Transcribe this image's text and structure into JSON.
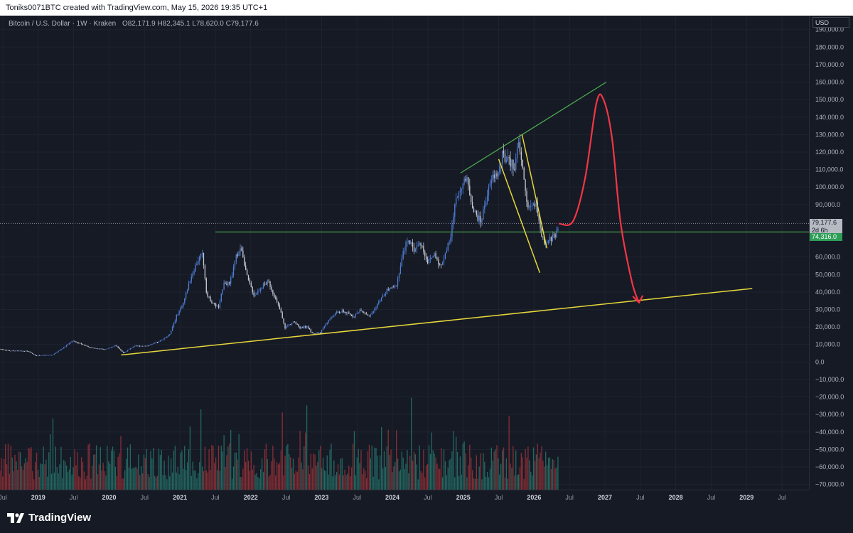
{
  "header": {
    "text": "Toniks0071BTC created with TradingView.com, May 15, 2026 19:35 UTC+1"
  },
  "legend": {
    "symbol": "Bitcoin / U.S. Dollar · 1W · Kraken",
    "ohlc": "O82,171.9  H82,345.1  L78,620.0  C79,177.6"
  },
  "price_axis": {
    "currency": "USD",
    "current_price_label": "79,177.6",
    "countdown_label": "2d 6h",
    "support_label": "74,316.0"
  },
  "branding": {
    "name": "TradingView"
  },
  "colors": {
    "background": "#161a25",
    "up_candle": "#4f7fd8",
    "down_candle": "#c8cbd2",
    "volume_up": "#26756c",
    "volume_down": "#9b3338",
    "green_line": "#4caf50",
    "yellow_line": "#e6d73a",
    "red_projection": "#f23645",
    "support_tag": "#2e9e57",
    "price_tag": "#b6bac2"
  },
  "chart_data": {
    "type": "candlestick",
    "title": "Bitcoin / U.S. Dollar · 1W · Kraken",
    "y_axis_ticks": [
      190000,
      180000,
      170000,
      160000,
      150000,
      140000,
      130000,
      120000,
      110000,
      100000,
      90000,
      80000,
      60000,
      50000,
      40000,
      30000,
      20000,
      10000,
      0,
      -10000,
      -20000,
      -30000,
      -40000,
      -50000,
      -60000,
      -70000
    ],
    "y_tick_labels": [
      "190,000.0",
      "180,000.0",
      "170,000.0",
      "160,000.0",
      "150,000.0",
      "140,000.0",
      "130,000.0",
      "120,000.0",
      "110,000.0",
      "100,000.0",
      "90,000.0",
      "80,000.0",
      "60,000.0",
      "50,000.0",
      "40,000.0",
      "30,000.0",
      "20,000.0",
      "10,000.0",
      "0.0",
      "−10,000.0",
      "−20,000.0",
      "−30,000.0",
      "−40,000.0",
      "−50,000.0",
      "−60,000.0",
      "−70,000.0"
    ],
    "ylim": [
      -73000,
      198000
    ],
    "x_axis_labels": [
      {
        "label": "Jul",
        "t": 2018.5
      },
      {
        "label": "2019",
        "t": 2019.0
      },
      {
        "label": "Jul",
        "t": 2019.5
      },
      {
        "label": "2020",
        "t": 2020.0
      },
      {
        "label": "Jul",
        "t": 2020.5
      },
      {
        "label": "2021",
        "t": 2021.0
      },
      {
        "label": "Jul",
        "t": 2021.5
      },
      {
        "label": "2022",
        "t": 2022.0
      },
      {
        "label": "Jul",
        "t": 2022.5
      },
      {
        "label": "2023",
        "t": 2023.0
      },
      {
        "label": "Jul",
        "t": 2023.5
      },
      {
        "label": "2024",
        "t": 2024.0
      },
      {
        "label": "Jul",
        "t": 2024.5
      },
      {
        "label": "2025",
        "t": 2025.0
      },
      {
        "label": "Jul",
        "t": 2025.5
      },
      {
        "label": "2026",
        "t": 2026.0
      },
      {
        "label": "Jul",
        "t": 2026.5
      },
      {
        "label": "2027",
        "t": 2027.0
      },
      {
        "label": "Jul",
        "t": 2027.5
      },
      {
        "label": "2028",
        "t": 2028.0
      },
      {
        "label": "Jul",
        "t": 2028.5
      },
      {
        "label": "2029",
        "t": 2029.0
      },
      {
        "label": "Jul",
        "t": 2029.5
      }
    ],
    "xlim": [
      2018.46,
      2029.88
    ],
    "price_path": [
      [
        2018.46,
        7400
      ],
      [
        2018.6,
        6400
      ],
      [
        2018.85,
        6200
      ],
      [
        2018.96,
        3700
      ],
      [
        2019.2,
        4000
      ],
      [
        2019.35,
        8000
      ],
      [
        2019.48,
        12000
      ],
      [
        2019.6,
        10500
      ],
      [
        2019.75,
        8000
      ],
      [
        2019.95,
        7200
      ],
      [
        2020.1,
        9500
      ],
      [
        2020.2,
        5000
      ],
      [
        2020.35,
        9000
      ],
      [
        2020.55,
        9300
      ],
      [
        2020.7,
        11500
      ],
      [
        2020.85,
        15500
      ],
      [
        2020.95,
        26000
      ],
      [
        2021.05,
        34000
      ],
      [
        2021.15,
        48000
      ],
      [
        2021.25,
        58000
      ],
      [
        2021.32,
        62000
      ],
      [
        2021.38,
        38000
      ],
      [
        2021.48,
        33000
      ],
      [
        2021.55,
        31000
      ],
      [
        2021.62,
        46000
      ],
      [
        2021.7,
        44000
      ],
      [
        2021.8,
        61000
      ],
      [
        2021.87,
        65000
      ],
      [
        2021.95,
        48000
      ],
      [
        2022.05,
        38000
      ],
      [
        2022.15,
        43000
      ],
      [
        2022.25,
        46000
      ],
      [
        2022.33,
        38000
      ],
      [
        2022.42,
        29000
      ],
      [
        2022.48,
        19500
      ],
      [
        2022.6,
        23000
      ],
      [
        2022.7,
        19500
      ],
      [
        2022.8,
        20500
      ],
      [
        2022.86,
        16500
      ],
      [
        2022.98,
        16600
      ],
      [
        2023.08,
        23000
      ],
      [
        2023.2,
        28000
      ],
      [
        2023.3,
        29000
      ],
      [
        2023.45,
        26000
      ],
      [
        2023.55,
        30000
      ],
      [
        2023.68,
        26000
      ],
      [
        2023.82,
        35000
      ],
      [
        2023.95,
        42000
      ],
      [
        2024.05,
        43000
      ],
      [
        2024.15,
        62000
      ],
      [
        2024.22,
        71000
      ],
      [
        2024.3,
        64000
      ],
      [
        2024.4,
        68000
      ],
      [
        2024.5,
        57000
      ],
      [
        2024.6,
        62000
      ],
      [
        2024.68,
        54000
      ],
      [
        2024.75,
        63000
      ],
      [
        2024.82,
        70000
      ],
      [
        2024.88,
        90000
      ],
      [
        2024.96,
        100000
      ],
      [
        2025.05,
        104000
      ],
      [
        2025.15,
        86000
      ],
      [
        2025.25,
        80000
      ],
      [
        2025.33,
        95000
      ],
      [
        2025.42,
        106000
      ],
      [
        2025.5,
        108000
      ],
      [
        2025.55,
        118000
      ],
      [
        2025.62,
        115000
      ],
      [
        2025.72,
        112000
      ],
      [
        2025.78,
        124000
      ],
      [
        2025.84,
        110000
      ],
      [
        2025.9,
        90000
      ],
      [
        2025.97,
        88000
      ],
      [
        2026.03,
        92000
      ],
      [
        2026.08,
        76000
      ],
      [
        2026.15,
        66000
      ],
      [
        2026.22,
        70000
      ],
      [
        2026.3,
        73000
      ],
      [
        2026.35,
        79177.6
      ]
    ],
    "annotations": {
      "horizontal_support": {
        "price": 74316.0,
        "x_start": 2021.5,
        "x_end": 2029.88
      },
      "current_price_line": {
        "price": 79177.6
      },
      "green_rising_line": [
        [
          2024.96,
          108000
        ],
        [
          2027.02,
          160000
        ]
      ],
      "yellow_long_trendline": [
        [
          2020.17,
          4000
        ],
        [
          2029.08,
          42000
        ]
      ],
      "yellow_channel_upper": [
        [
          2025.83,
          130000
        ],
        [
          2026.18,
          65000
        ]
      ],
      "yellow_channel_lower": [
        [
          2025.5,
          116000
        ],
        [
          2026.08,
          51000
        ]
      ],
      "red_projection_path": [
        [
          2026.36,
          79000
        ],
        [
          2026.55,
          80500
        ],
        [
          2026.72,
          105000
        ],
        [
          2026.88,
          148000
        ],
        [
          2026.98,
          150000
        ],
        [
          2027.1,
          128000
        ],
        [
          2027.22,
          80000
        ],
        [
          2027.38,
          46000
        ],
        [
          2027.48,
          34000
        ]
      ]
    },
    "volume": {
      "scale_max": 100,
      "baseline_price": -73000,
      "full_height_price": -14000
    }
  }
}
